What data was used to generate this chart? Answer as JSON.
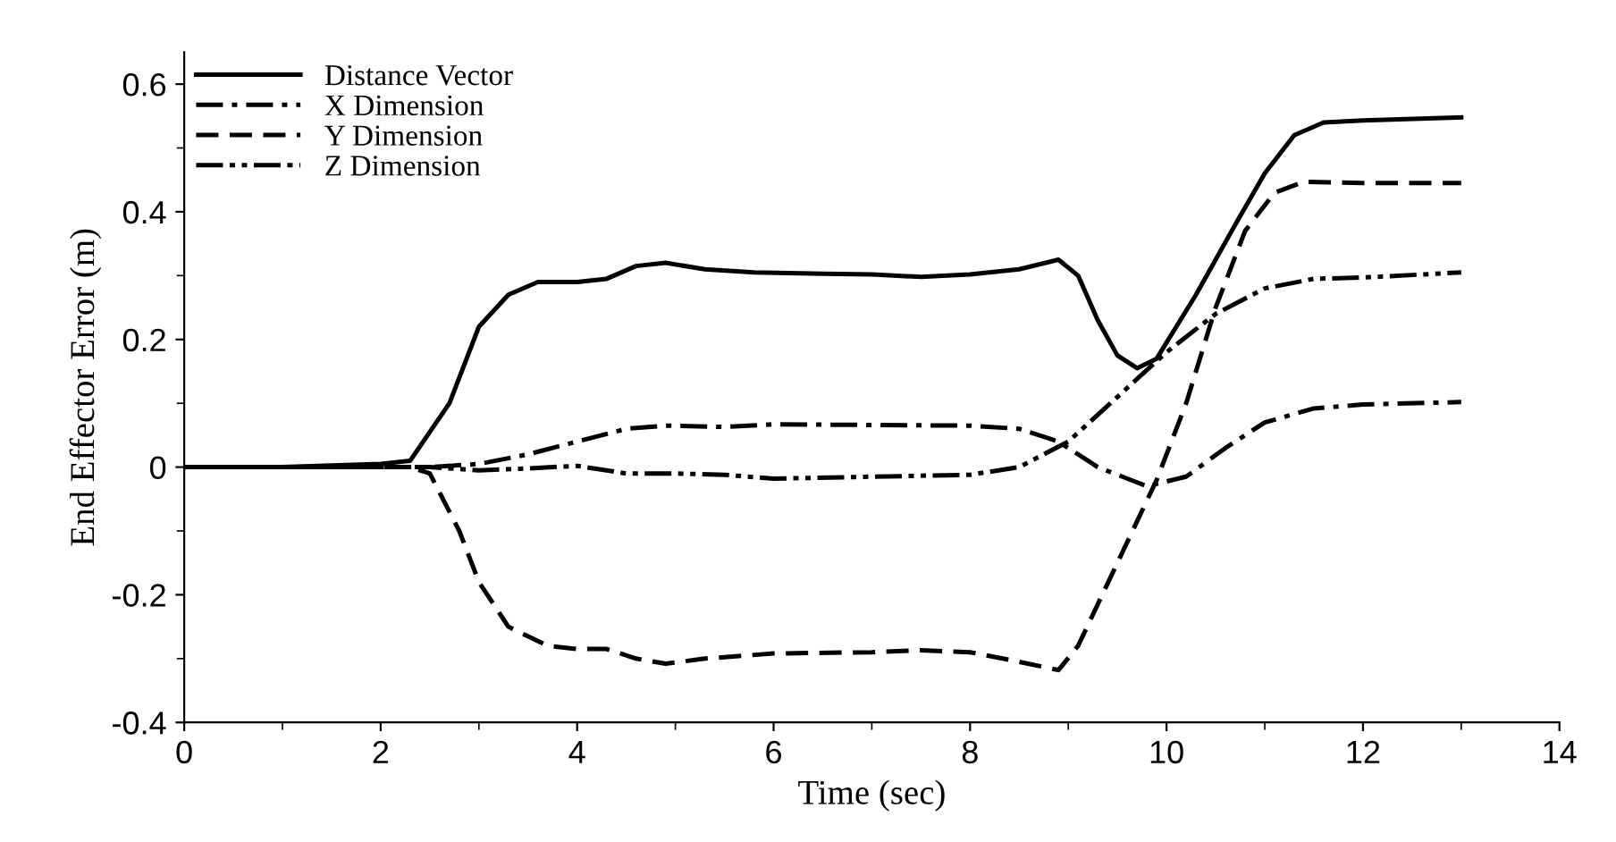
{
  "chart_data": {
    "type": "line",
    "xlabel": "Time (sec)",
    "ylabel": "End Effector Error (m)",
    "xlim": [
      0,
      14
    ],
    "xticks": [
      0,
      2,
      4,
      6,
      8,
      10,
      12,
      14
    ],
    "ylim": [
      -0.4,
      0.65
    ],
    "yticks": [
      -0.4,
      -0.2,
      0,
      0.2,
      0.4,
      0.6
    ],
    "grid": false,
    "legend": "top left",
    "marker": "none",
    "series": [
      {
        "name": "Distance Vector",
        "color": "#000000",
        "line_style": "solid",
        "x": [
          0,
          1,
          2,
          2.3,
          2.7,
          3.0,
          3.3,
          3.6,
          4.0,
          4.3,
          4.6,
          4.9,
          5.3,
          5.8,
          6.5,
          7.0,
          7.5,
          8.0,
          8.5,
          8.9,
          9.1,
          9.3,
          9.5,
          9.7,
          9.9,
          10.3,
          10.7,
          11.0,
          11.3,
          11.6,
          12.0,
          13.0
        ],
        "values": [
          0,
          0,
          0.005,
          0.01,
          0.1,
          0.22,
          0.27,
          0.29,
          0.29,
          0.295,
          0.315,
          0.32,
          0.31,
          0.305,
          0.303,
          0.302,
          0.298,
          0.302,
          0.31,
          0.325,
          0.3,
          0.23,
          0.175,
          0.155,
          0.17,
          0.27,
          0.38,
          0.46,
          0.52,
          0.54,
          0.543,
          0.548
        ]
      },
      {
        "name": "X Dimension",
        "color": "#000000",
        "line_style": "dashdot",
        "x": [
          0,
          1,
          2,
          2.5,
          3,
          3.5,
          4,
          4.5,
          4.9,
          5.5,
          6.0,
          7,
          8,
          8.5,
          8.9,
          9.3,
          9.8,
          10.2,
          10.6,
          11.0,
          11.5,
          12,
          13
        ],
        "values": [
          0,
          0,
          0,
          0,
          0.005,
          0.02,
          0.04,
          0.06,
          0.065,
          0.063,
          0.067,
          0.066,
          0.065,
          0.06,
          0.04,
          0.0,
          -0.03,
          -0.015,
          0.03,
          0.07,
          0.092,
          0.098,
          0.102
        ]
      },
      {
        "name": "Y Dimension",
        "color": "#000000",
        "line_style": "dashed",
        "x": [
          0,
          1,
          2,
          2.3,
          2.5,
          2.8,
          3.0,
          3.3,
          3.7,
          4.0,
          4.3,
          4.6,
          4.9,
          5.3,
          6,
          7,
          7.5,
          8.0,
          8.5,
          8.9,
          9.1,
          9.5,
          9.9,
          10.2,
          10.5,
          10.8,
          11.1,
          11.4,
          12,
          13
        ],
        "values": [
          0,
          0,
          0,
          0,
          -0.01,
          -0.1,
          -0.18,
          -0.25,
          -0.28,
          -0.285,
          -0.285,
          -0.3,
          -0.308,
          -0.3,
          -0.292,
          -0.29,
          -0.287,
          -0.29,
          -0.305,
          -0.318,
          -0.28,
          -0.15,
          -0.02,
          0.1,
          0.25,
          0.37,
          0.43,
          0.447,
          0.445,
          0.445
        ]
      },
      {
        "name": "Z Dimension",
        "color": "#000000",
        "line_style": "dashdotdot",
        "x": [
          0,
          1,
          2,
          2.5,
          3,
          3.5,
          4,
          4.5,
          5,
          5.5,
          6,
          7,
          8,
          8.5,
          9.0,
          9.5,
          10,
          10.5,
          11,
          11.5,
          12,
          13
        ],
        "values": [
          0,
          0,
          0,
          0,
          -0.005,
          -0.002,
          0.002,
          -0.01,
          -0.01,
          -0.012,
          -0.018,
          -0.015,
          -0.012,
          0.0,
          0.04,
          0.11,
          0.18,
          0.24,
          0.28,
          0.295,
          0.297,
          0.305
        ]
      }
    ]
  }
}
